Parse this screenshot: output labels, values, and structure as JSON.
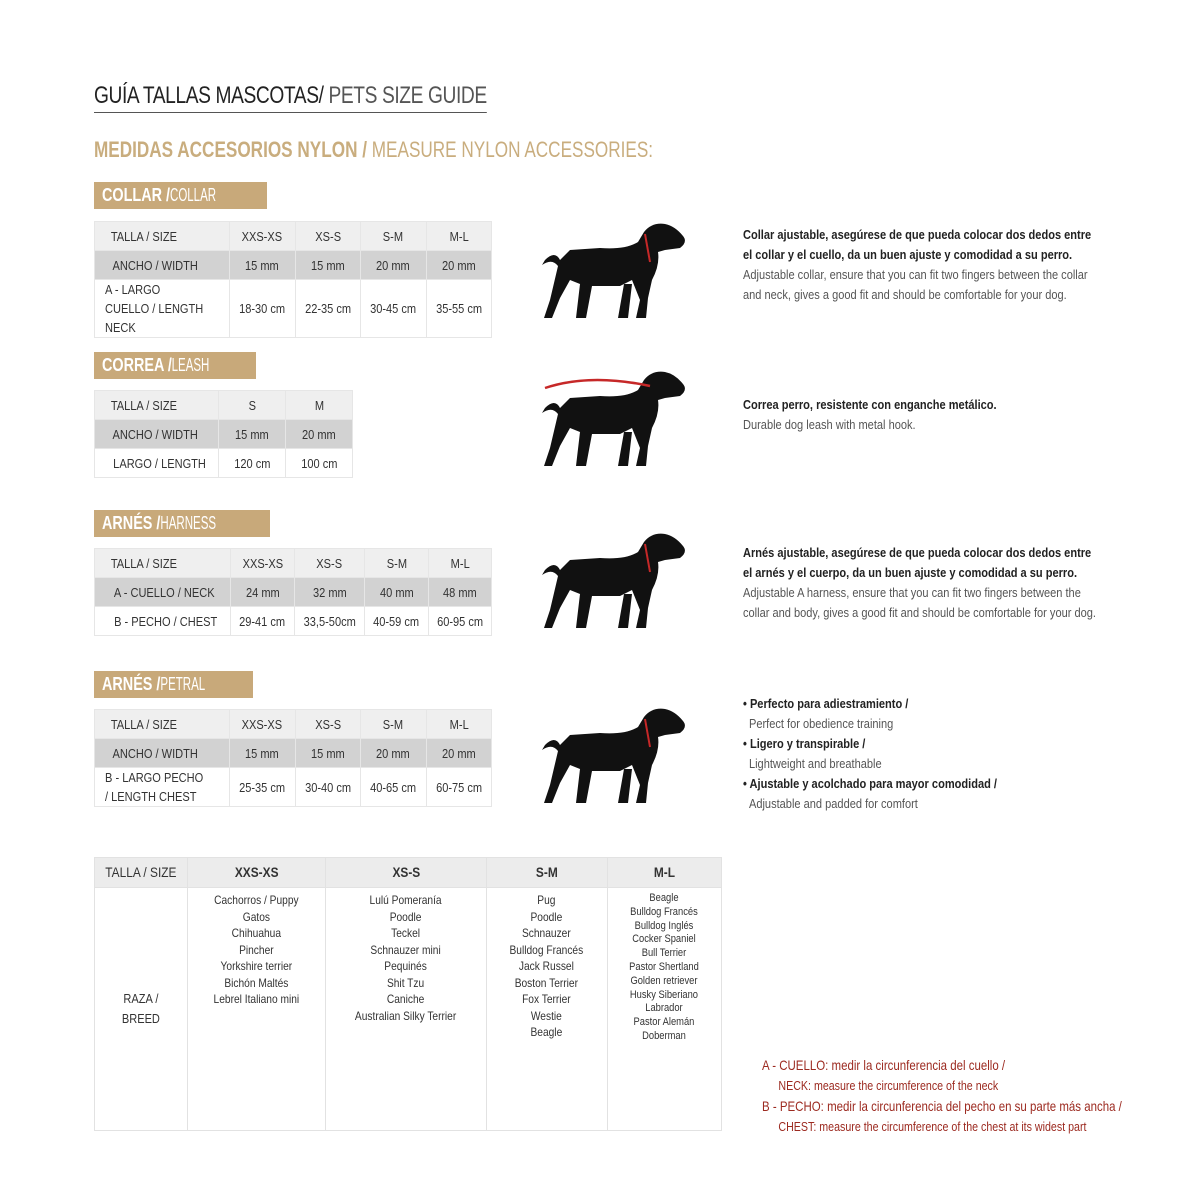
{
  "title": {
    "es": "GUÍA TALLAS MASCOTAS/",
    "en": " PETS SIZE GUIDE"
  },
  "subtitle": {
    "es": "MEDIDAS ACCESORIOS NYLON /",
    "en": " MEASURE NYLON ACCESSORIES:"
  },
  "colors": {
    "gold": "#c8a97a",
    "red": "#9c2a20"
  },
  "collar": {
    "badge_es": "COLLAR /",
    "badge_en": " COLLAR",
    "rows": [
      [
        "TALLA / SIZE",
        "XXS-XS",
        "XS-S",
        "S-M",
        "M-L"
      ],
      [
        "ANCHO / WIDTH",
        "15 mm",
        "15 mm",
        "20 mm",
        "20 mm"
      ],
      [
        "A - LARGO CUELLO / LENGTH NECK",
        "18-30 cm",
        "22-35 cm",
        "30-45 cm",
        "35-55 cm"
      ]
    ],
    "desc": [
      "Collar ajustable, asegúrese de que pueda colocar dos dedos entre",
      "el collar y el cuello, da un buen ajuste y comodidad a su perro.",
      "Adjustable collar, ensure that you can fit two fingers between the collar",
      "and neck, gives a good fit and should be comfortable for your dog."
    ]
  },
  "leash": {
    "badge_es": "CORREA /",
    "badge_en": " LEASH",
    "rows": [
      [
        "TALLA / SIZE",
        "S",
        "M"
      ],
      [
        "ANCHO / WIDTH",
        "15 mm",
        "20 mm"
      ],
      [
        "LARGO / LENGTH",
        "120 cm",
        "100 cm"
      ]
    ],
    "desc": [
      "Correa perro, resistente con enganche metálico.",
      "Durable dog leash with metal hook."
    ]
  },
  "harness": {
    "badge_es": "ARNÉS /",
    "badge_en": " HARNESS",
    "rows": [
      [
        "TALLA / SIZE",
        "XXS-XS",
        "XS-S",
        "S-M",
        "M-L"
      ],
      [
        "A - CUELLO / NECK",
        "24 mm",
        "32 mm",
        "40 mm",
        "48 mm"
      ],
      [
        "B - PECHO / CHEST",
        "29-41 cm",
        "33,5-50cm",
        "40-59 cm",
        "60-95 cm"
      ]
    ],
    "desc": [
      "Arnés ajustable, asegúrese de que pueda colocar dos dedos entre",
      "el arnés y el cuerpo, da un buen ajuste y comodidad a su perro.",
      "Adjustable A harness, ensure that you can fit two fingers between the",
      "collar and body, gives a good fit and should be comfortable for your dog."
    ]
  },
  "petral": {
    "badge_es": "ARNÉS /",
    "badge_en": " PETRAL",
    "rows": [
      [
        "TALLA / SIZE",
        "XXS-XS",
        "XS-S",
        "S-M",
        "M-L"
      ],
      [
        "ANCHO / WIDTH",
        "15 mm",
        "15 mm",
        "20 mm",
        "20 mm"
      ],
      [
        "B - LARGO PECHO / LENGTH CHEST",
        "25-35 cm",
        "30-40 cm",
        "40-65 cm",
        "60-75 cm"
      ]
    ],
    "desc": [
      "• Perfecto para adiestramiento /",
      "Perfect for obedience training",
      "• Ligero y transpirable /",
      "Lightweight and breathable",
      "• Ajustable y acolchado para mayor comodidad /",
      "Adjustable and padded for comfort"
    ]
  },
  "breeds": {
    "header": [
      "TALLA /  SIZE",
      "XXS-XS",
      "XS-S",
      "S-M",
      "M-L"
    ],
    "row_label": "RAZA / BREED",
    "lists": [
      [
        "Cachorros / Puppy",
        "Gatos",
        "Chihuahua",
        "Pincher",
        "Yorkshire terrier",
        "Bichón Maltés",
        "Lebrel Italiano mini"
      ],
      [
        "Lulú Pomeranía",
        "Poodle",
        "Teckel",
        "Schnauzer mini",
        "Pequinés",
        "Shit Tzu",
        "Caniche",
        "Australian Silky Terrier"
      ],
      [
        "Pug",
        "Poodle",
        "Schnauzer",
        "Bulldog Francés",
        "Jack Russel",
        "Boston Terrier",
        "Fox Terrier",
        "Westie",
        "Beagle"
      ],
      [
        "Beagle",
        "Bulldog Francés",
        "Bulldog Inglés",
        "Cocker Spaniel",
        "Bull Terrier",
        "Pastor Shertland",
        "Golden retriever",
        "Husky Siberiano",
        "Labrador",
        "Pastor Alemán",
        "Doberman"
      ]
    ]
  },
  "legend": {
    "a_es": "A - CUELLO: medir la circunferencia del cuello /",
    "a_en": "NECK: measure the circumference of the neck",
    "b_es": "B - PECHO: medir la circunferencia del pecho en su parte más ancha /",
    "b_en": "CHEST: measure the circumference of the chest at its widest part"
  }
}
